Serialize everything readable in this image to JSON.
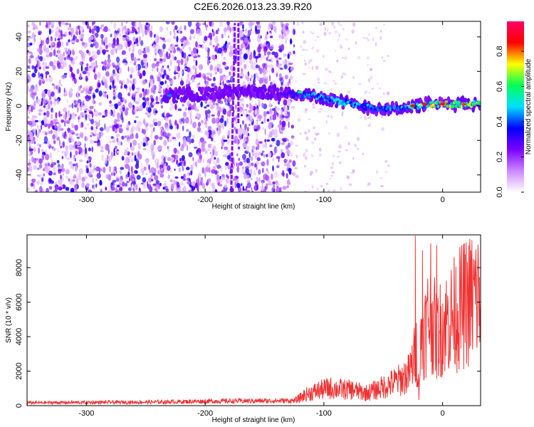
{
  "title": "C2E6.2026.013.23.39.R20",
  "chart_data": [
    {
      "type": "heatmap",
      "xlabel": "Height of straight line (km)",
      "ylabel": "Frequency (Hz)",
      "xlim": [
        -350,
        32
      ],
      "ylim": [
        -50,
        49
      ],
      "xticks": [
        -300,
        -200,
        -100,
        0
      ],
      "yticks": [
        -40,
        -20,
        0,
        20,
        40
      ],
      "colorbar": {
        "label": "Normalized spectral amplitude",
        "range": [
          0,
          0.97
        ],
        "ticks": [
          0.0,
          0.2,
          0.4,
          0.6,
          0.8
        ],
        "colors": [
          "#ffffff",
          "#cc88ff",
          "#7a00ff",
          "#0000ff",
          "#00e0ff",
          "#00ff55",
          "#ffff00",
          "#ff0000",
          "#ff0066"
        ]
      },
      "noise_region_km": [
        -350,
        -125
      ],
      "signal_band": [
        {
          "x": -235,
          "f": 6,
          "a": 0.3
        },
        {
          "x": -200,
          "f": 7,
          "a": 0.25
        },
        {
          "x": -180,
          "f": 8,
          "a": 0.25
        },
        {
          "x": -150,
          "f": 8,
          "a": 0.2
        },
        {
          "x": -130,
          "f": 7,
          "a": 0.35
        },
        {
          "x": -110,
          "f": 6,
          "a": 0.5
        },
        {
          "x": -90,
          "f": 3,
          "a": 0.55
        },
        {
          "x": -70,
          "f": 0,
          "a": 0.5
        },
        {
          "x": -50,
          "f": -2,
          "a": 0.45
        },
        {
          "x": -30,
          "f": -1,
          "a": 0.5
        },
        {
          "x": -15,
          "f": 1,
          "a": 0.75
        },
        {
          "x": 0,
          "f": 1,
          "a": 0.8
        },
        {
          "x": 15,
          "f": 1,
          "a": 0.75
        },
        {
          "x": 32,
          "f": 1,
          "a": 0.7
        }
      ]
    },
    {
      "type": "line",
      "xlabel": "Height of straight line (km)",
      "ylabel": "SNR (10 * v/v)",
      "xlim": [
        -350,
        32
      ],
      "ylim": [
        0,
        9900
      ],
      "xticks": [
        -300,
        -200,
        -100,
        0
      ],
      "yticks": [
        0,
        2000,
        4000,
        6000,
        8000
      ],
      "color": "#ee3333",
      "series": [
        {
          "x": [
            -350,
            -300,
            -250,
            -220,
            -200,
            -170,
            -140,
            -125,
            -115,
            -105,
            -95,
            -85,
            -75,
            -65,
            -55,
            -45,
            -35,
            -28,
            -25,
            -22,
            -20,
            -18,
            -15,
            -12,
            -10,
            -5,
            0,
            5,
            10,
            15,
            20,
            25,
            32
          ],
          "values": [
            200,
            220,
            240,
            270,
            300,
            320,
            330,
            350,
            900,
            1200,
            1400,
            1300,
            1250,
            1000,
            1300,
            1700,
            2100,
            2600,
            3500,
            4500,
            1200,
            5500,
            6000,
            7000,
            7500,
            5500,
            6500,
            6800,
            7300,
            7800,
            8200,
            8600,
            8800
          ]
        }
      ]
    }
  ]
}
